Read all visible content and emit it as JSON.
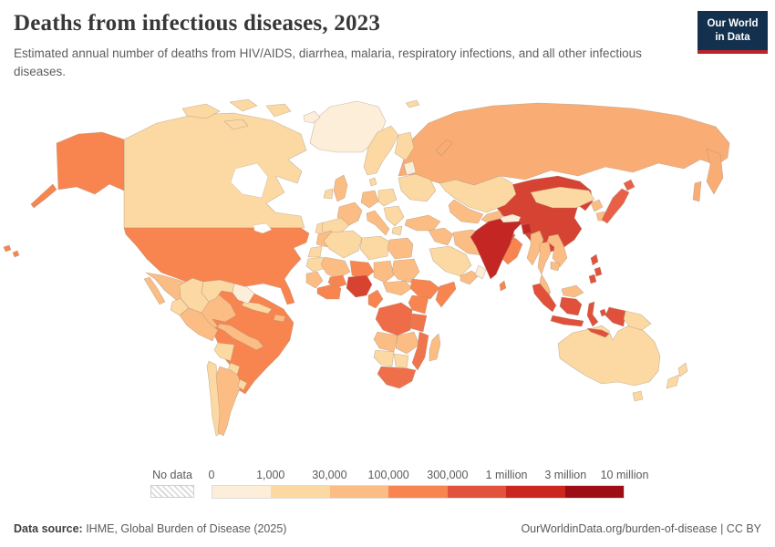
{
  "header": {
    "title": "Deaths from infectious diseases, 2023",
    "subtitle": "Estimated annual number of deaths from HIV/AIDS, diarrhea, malaria, respiratory infections, and all other infectious diseases.",
    "logo": {
      "line1": "Our World",
      "line2": "in Data",
      "bg_color": "#13304e",
      "accent_color": "#b9252b"
    }
  },
  "footer": {
    "source_label": "Data source:",
    "source_text": " IHME, Global Burden of Disease (2025)",
    "right_text": "OurWorldinData.org/burden-of-disease | CC BY"
  },
  "chart_data": {
    "type": "choropleth-map",
    "title": "Deaths from infectious diseases, 2023",
    "year": "2023",
    "unit": "deaths per year",
    "legend": {
      "no_data_label": "No data",
      "ticks": [
        "0",
        "1,000",
        "30,000",
        "100,000",
        "300,000",
        "1 million",
        "3 million",
        "10 million"
      ],
      "colors": [
        "#fdeeda",
        "#fcd8a2",
        "#fbbd84",
        "#f8854f",
        "#e2533e",
        "#c9271f",
        "#9e0d13"
      ],
      "bin_labels": [
        "0 - 1,000",
        "1,000 - 30,000",
        "30,000 - 100,000",
        "100,000 - 300,000",
        "300,000 - 1 million",
        "1 million - 3 million",
        "3 million - 10 million"
      ]
    },
    "regions": {
      "greenland": {
        "name": "Greenland",
        "bin": 0
      },
      "iceland": {
        "name": "Iceland",
        "bin": 0
      },
      "canada": {
        "name": "Canada",
        "bin": 1
      },
      "usa": {
        "name": "United States",
        "bin": 3
      },
      "mexico": {
        "name": "Mexico",
        "bin": 2
      },
      "central-america": {
        "name": "Central America",
        "bin": 2
      },
      "cuba": {
        "name": "Cuba",
        "bin": 1
      },
      "hispaniola": {
        "name": "Hispaniola",
        "bin": 2
      },
      "colombia": {
        "name": "Colombia",
        "bin": 1
      },
      "venezuela": {
        "name": "Venezuela",
        "bin": 1
      },
      "guyanas": {
        "name": "Guyanas",
        "bin": 0
      },
      "ecuador": {
        "name": "Ecuador",
        "bin": 1
      },
      "peru": {
        "name": "Peru",
        "bin": 2
      },
      "brazil": {
        "name": "Brazil",
        "bin": 3
      },
      "bolivia": {
        "name": "Bolivia",
        "bin": 1
      },
      "paraguay": {
        "name": "Paraguay",
        "bin": 1
      },
      "chile": {
        "name": "Chile",
        "bin": 1
      },
      "argentina": {
        "name": "Argentina",
        "bin": 2
      },
      "uruguay": {
        "name": "Uruguay",
        "bin": 1
      },
      "uk": {
        "name": "United Kingdom",
        "bin": 2
      },
      "ireland": {
        "name": "Ireland",
        "bin": 1
      },
      "scandinavia": {
        "name": "Scandinavia",
        "bin": 1
      },
      "baltics": {
        "name": "Baltic states",
        "bin": 0
      },
      "france": {
        "name": "France",
        "bin": 2
      },
      "spain": {
        "name": "Spain",
        "bin": 1
      },
      "portugal": {
        "name": "Portugal",
        "bin": 1
      },
      "germany": {
        "name": "Germany",
        "bin": 2
      },
      "central-europe": {
        "name": "Central Europe",
        "bin": 1
      },
      "italy": {
        "name": "Italy",
        "bin": 2
      },
      "balkans": {
        "name": "Balkans",
        "bin": 1
      },
      "greece": {
        "name": "Greece",
        "bin": 1
      },
      "ukraine": {
        "name": "Ukraine & Belarus",
        "bin": 1
      },
      "turkey": {
        "name": "Turkey",
        "bin": 2
      },
      "russia": {
        "name": "Russia",
        "bin": 2,
        "fill": "#f9ad74"
      },
      "kazakhstan": {
        "name": "Kazakhstan",
        "bin": 1
      },
      "central-asia": {
        "name": "Central Asia",
        "bin": 2
      },
      "mongolia": {
        "name": "Mongolia",
        "bin": 1
      },
      "iraq-syria": {
        "name": "Iraq & Syria",
        "bin": 2
      },
      "iran": {
        "name": "Iran",
        "bin": 2
      },
      "saudi": {
        "name": "Saudi Arabia",
        "bin": 1
      },
      "yemen": {
        "name": "Yemen",
        "bin": 2
      },
      "oman": {
        "name": "Oman & UAE",
        "bin": 0
      },
      "afghanistan": {
        "name": "Afghanistan",
        "bin": 4,
        "fill": "#e8643f"
      },
      "pakistan": {
        "name": "Pakistan",
        "bin": 3
      },
      "morocco": {
        "name": "Morocco",
        "bin": 2
      },
      "wsahara": {
        "name": "Western Sahara",
        "bin": 1
      },
      "algeria": {
        "name": "Algeria",
        "bin": 1
      },
      "libya": {
        "name": "Libya",
        "bin": 1
      },
      "egypt": {
        "name": "Egypt",
        "bin": 2
      },
      "mauritania": {
        "name": "Mauritania",
        "bin": 1
      },
      "mali": {
        "name": "Mali",
        "bin": 2
      },
      "niger": {
        "name": "Niger",
        "bin": 3
      },
      "chad": {
        "name": "Chad",
        "bin": 2
      },
      "sudan": {
        "name": "Sudan",
        "bin": 2
      },
      "senegal-guinea": {
        "name": "Senegal & Guinea",
        "bin": 2
      },
      "ivory-ghana": {
        "name": "Cote d'Ivoire & Ghana",
        "bin": 3
      },
      "burkina": {
        "name": "Burkina Faso",
        "bin": 3
      },
      "nigeria": {
        "name": "Nigeria",
        "bin": 4,
        "fill": "#d84331"
      },
      "cameroon": {
        "name": "Cameroon",
        "bin": 3
      },
      "car-ssudan": {
        "name": "Central African Rep. & South Sudan",
        "bin": 2
      },
      "ethiopia": {
        "name": "Ethiopia",
        "bin": 3
      },
      "somalia": {
        "name": "Somalia",
        "bin": 3
      },
      "kenya-uganda": {
        "name": "Kenya & Uganda",
        "bin": 3
      },
      "drc": {
        "name": "Democratic Republic of Congo",
        "bin": 4,
        "fill": "#ee6c47"
      },
      "tanzania": {
        "name": "Tanzania",
        "bin": 4,
        "fill": "#f0744c"
      },
      "angola": {
        "name": "Angola",
        "bin": 2
      },
      "zambia-zimbabwe": {
        "name": "Zambia & Zimbabwe",
        "bin": 2
      },
      "mozambique": {
        "name": "Mozambique & Malawi",
        "bin": 4,
        "fill": "#f0744c"
      },
      "namibia": {
        "name": "Namibia",
        "bin": 1
      },
      "botswana": {
        "name": "Botswana",
        "bin": 1
      },
      "south-africa": {
        "name": "South Africa",
        "bin": 4,
        "fill": "#ef6f4a"
      },
      "madagascar": {
        "name": "Madagascar",
        "bin": 2
      },
      "india": {
        "name": "India",
        "bin": 5,
        "fill": "#c42723"
      },
      "sri-lanka": {
        "name": "Sri Lanka",
        "bin": 3
      },
      "nepal": {
        "name": "Nepal",
        "bin": 0
      },
      "bangladesh": {
        "name": "Bangladesh",
        "bin": 5,
        "fill": "#c42723"
      },
      "china": {
        "name": "China",
        "bin": 4,
        "fill": "#d64332"
      },
      "north-korea": {
        "name": "North Korea",
        "bin": 2
      },
      "south-korea": {
        "name": "South Korea",
        "bin": 2
      },
      "japan": {
        "name": "Japan",
        "bin": 4,
        "fill": "#ea6046"
      },
      "myanmar": {
        "name": "Myanmar",
        "bin": 2
      },
      "thailand": {
        "name": "Thailand",
        "bin": 2
      },
      "vietnam": {
        "name": "Vietnam & Laos",
        "bin": 2
      },
      "cambodia": {
        "name": "Cambodia",
        "bin": 2
      },
      "philippines": {
        "name": "Philippines",
        "bin": 4
      },
      "malaysia": {
        "name": "Malaysia",
        "bin": 2
      },
      "indonesia": {
        "name": "Indonesia",
        "bin": 4,
        "fill": "#e0503a"
      },
      "papua-new-guinea": {
        "name": "Papua New Guinea",
        "bin": 1
      },
      "australia": {
        "name": "Australia",
        "bin": 1
      },
      "new-zealand": {
        "name": "New Zealand",
        "bin": 1
      }
    }
  }
}
